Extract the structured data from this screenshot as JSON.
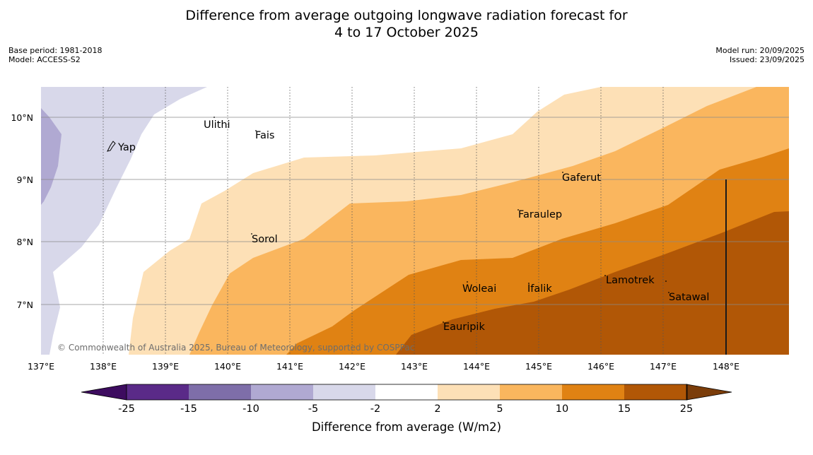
{
  "header": {
    "title_line1": "Difference from average outgoing longwave radiation forecast for",
    "title_line2": "4 to 17 October 2025",
    "base_period": "Base period: 1981-2018",
    "model": "Model: ACCESS-S2",
    "model_run": "Model run: 20/09/2025",
    "issued": "Issued: 23/09/2025"
  },
  "map": {
    "longitude_labels": [
      "137°E",
      "138°E",
      "139°E",
      "140°E",
      "141°E",
      "142°E",
      "143°E",
      "144°E",
      "145°E",
      "146°E",
      "147°E",
      "148°E"
    ],
    "latitude_labels": [
      "10°N",
      "9°N",
      "8°N",
      "7°N"
    ],
    "places": [
      "Ulithi",
      "Fais",
      "Yap",
      "Gaferut",
      "Faraulep",
      "Sorol",
      "Woleai",
      "Ifalik",
      "Lamotrek",
      "Satawal",
      "Eauripik"
    ],
    "copyright": "© Commonwealth of Australia 2025, Bureau of Meteorology, supported by COSPPac"
  },
  "colorbar": {
    "ticks": [
      "-25",
      "-15",
      "-10",
      "-5",
      "-2",
      "2",
      "5",
      "10",
      "15",
      "25"
    ],
    "label": "Difference from average (W/m2)",
    "colors": [
      "#3d0c5f",
      "#5a2a88",
      "#7e6ea9",
      "#b0a9d2",
      "#d8d8ea",
      "#ffffff",
      "#fde0b6",
      "#fab65e",
      "#e08213",
      "#b15706",
      "#7b3d0a"
    ]
  }
}
